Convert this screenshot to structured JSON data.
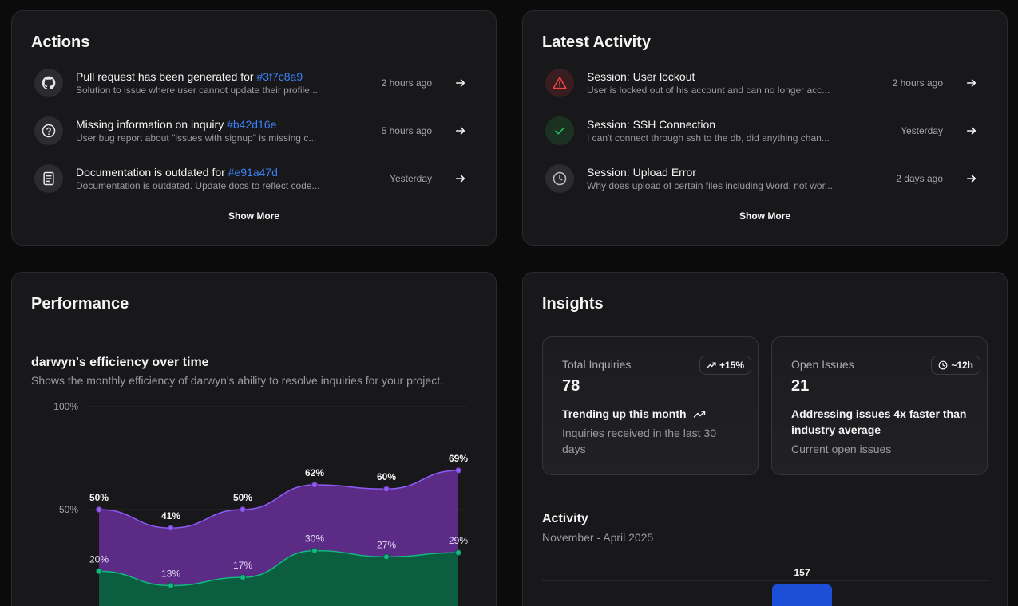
{
  "actions": {
    "title": "Actions",
    "items": [
      {
        "title": "Pull request has been generated for ",
        "ref": "#3f7c8a9",
        "sub": "Solution to issue where user cannot update their profile...",
        "time": "2 hours ago",
        "icon": "github-icon"
      },
      {
        "title": "Missing information on inquiry ",
        "ref": "#b42d16e",
        "sub": "User bug report about \"issues with signup\" is missing c...",
        "time": "5 hours ago",
        "icon": "question-icon"
      },
      {
        "title": "Documentation is outdated for ",
        "ref": "#e91a47d",
        "sub": "Documentation is outdated. Update docs to reflect code...",
        "time": "Yesterday",
        "icon": "book-icon"
      }
    ],
    "show_more": "Show More"
  },
  "activity": {
    "title": "Latest Activity",
    "items": [
      {
        "title": "Session: User lockout",
        "sub": "User is locked out of his account and can no longer acc...",
        "time": "2 hours ago",
        "icon": "alert-triangle-icon"
      },
      {
        "title": "Session: SSH Connection",
        "sub": "I can't connect through ssh to the db, did anything chan...",
        "time": "Yesterday",
        "icon": "check-icon"
      },
      {
        "title": "Session: Upload Error",
        "sub": "Why does upload of certain files including Word, not wor...",
        "time": "2 days ago",
        "icon": "clock-icon"
      }
    ],
    "show_more": "Show More"
  },
  "performance": {
    "title": "Performance",
    "chart_title": "darwyn's efficiency over time",
    "chart_desc": "Shows the monthly efficiency of darwyn's ability to resolve inquiries for your project."
  },
  "chart_data": {
    "type": "area",
    "x": [
      1,
      2,
      3,
      4,
      5,
      6
    ],
    "series": [
      {
        "values": [
          50,
          41,
          50,
          62,
          60,
          69
        ],
        "color": "#8b5cf6"
      },
      {
        "values": [
          20,
          13,
          17,
          30,
          27,
          29
        ],
        "color": "#10b981"
      }
    ],
    "labels_upper": [
      "50%",
      "41%",
      "50%",
      "62%",
      "60%",
      "69%"
    ],
    "labels_lower": [
      "20%",
      "13%",
      "17%",
      "30%",
      "27%",
      "29%"
    ],
    "y_ticks": [
      "100%",
      "50%"
    ],
    "ylim": [
      0,
      100
    ],
    "grid": true
  },
  "insights": {
    "title": "Insights",
    "total": {
      "label": "Total Inquiries",
      "badge": "+15%",
      "value": "78",
      "headline": "Trending up this month",
      "note": "Inquiries received in the last 30 days"
    },
    "open": {
      "label": "Open Issues",
      "badge": "~12h",
      "value": "21",
      "headline": "Addressing issues 4x faster than industry average",
      "note": "Current open issues"
    },
    "activity_title": "Activity",
    "activity_range": "November - April 2025",
    "bar_value": "157"
  }
}
